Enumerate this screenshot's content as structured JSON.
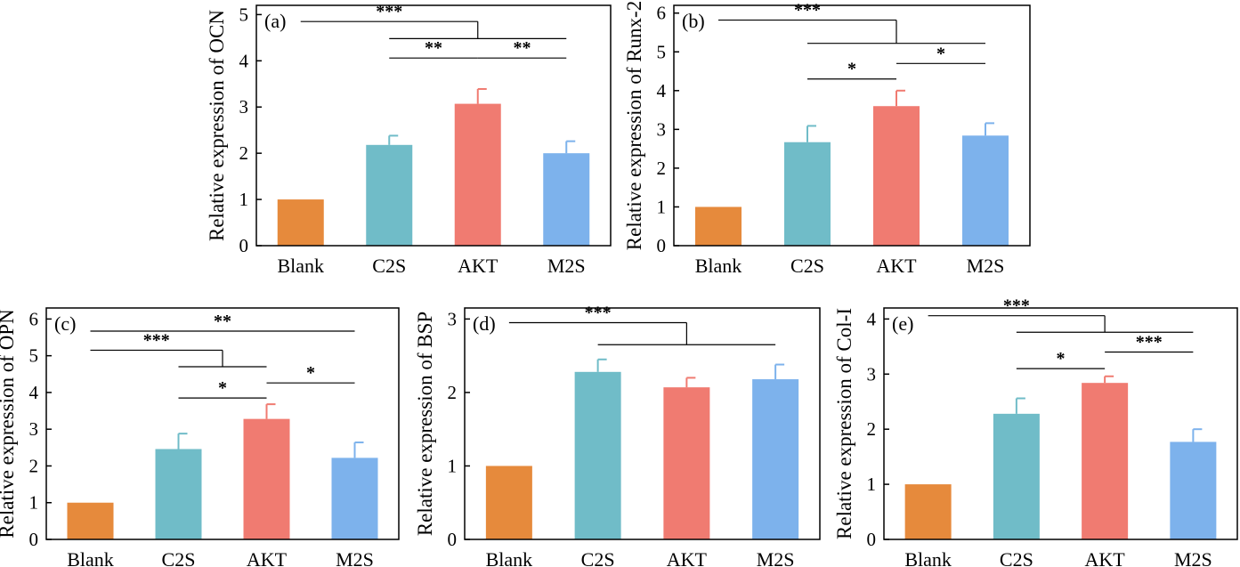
{
  "chart_data": [
    {
      "type": "bar",
      "panel_label": "(a)",
      "categories": [
        "Blank",
        "C2S",
        "AKT",
        "M2S"
      ],
      "values": [
        1.0,
        2.18,
        3.07,
        2.0
      ],
      "errors": [
        0.0,
        0.2,
        0.32,
        0.26
      ],
      "colors": [
        "#E68A3C",
        "#70BCC8",
        "#F07B71",
        "#7DB2EC"
      ],
      "ylabel": "Relative expression of OCN",
      "xlabel": "",
      "ylim": [
        0,
        5.2
      ],
      "yticks": [
        0,
        1,
        2,
        3,
        4,
        5
      ],
      "significance": [
        {
          "type": "group",
          "from": 0,
          "to_range": [
            1,
            3
          ],
          "label": "***",
          "y": 4.85,
          "y2": 4.48
        },
        {
          "type": "pair",
          "from": 1,
          "to": 2,
          "label": "**",
          "y": 4.06
        },
        {
          "type": "pair",
          "from": 2,
          "to": 3,
          "label": "**",
          "y": 4.06
        }
      ]
    },
    {
      "type": "bar",
      "panel_label": "(b)",
      "categories": [
        "Blank",
        "C2S",
        "AKT",
        "M2S"
      ],
      "values": [
        1.0,
        2.67,
        3.6,
        2.84
      ],
      "errors": [
        0.0,
        0.42,
        0.4,
        0.32
      ],
      "colors": [
        "#E68A3C",
        "#70BCC8",
        "#F07B71",
        "#7DB2EC"
      ],
      "ylabel": "Relative expression of Runx-2",
      "xlabel": "",
      "ylim": [
        0,
        6.2
      ],
      "yticks": [
        0,
        1,
        2,
        3,
        4,
        5,
        6
      ],
      "significance": [
        {
          "type": "group",
          "from": 0,
          "to_range": [
            1,
            3
          ],
          "label": "***",
          "y": 5.82,
          "y2": 5.22
        },
        {
          "type": "pair",
          "from": 1,
          "to": 2,
          "label": "*",
          "y": 4.3
        },
        {
          "type": "pair",
          "from": 2,
          "to": 3,
          "label": "*",
          "y": 4.7
        }
      ]
    },
    {
      "type": "bar",
      "panel_label": "(c)",
      "categories": [
        "Blank",
        "C2S",
        "AKT",
        "M2S"
      ],
      "values": [
        1.0,
        2.46,
        3.28,
        2.22
      ],
      "errors": [
        0.0,
        0.42,
        0.4,
        0.42
      ],
      "colors": [
        "#E68A3C",
        "#70BCC8",
        "#F07B71",
        "#7DB2EC"
      ],
      "ylabel": "Relative expression of OPN",
      "xlabel": "",
      "ylim": [
        0,
        6.3
      ],
      "yticks": [
        0,
        1,
        2,
        3,
        4,
        5,
        6
      ],
      "significance": [
        {
          "type": "pair",
          "from": 0,
          "to": 3,
          "label": "**",
          "y": 5.67
        },
        {
          "type": "group",
          "from": 0,
          "to_range": [
            1,
            2
          ],
          "label": "***",
          "y": 5.15,
          "y2": 4.7
        },
        {
          "type": "pair",
          "from": 1,
          "to": 2,
          "label": "*",
          "y": 3.85
        },
        {
          "type": "pair",
          "from": 2,
          "to": 3,
          "label": "*",
          "y": 4.26
        }
      ]
    },
    {
      "type": "bar",
      "panel_label": "(d)",
      "categories": [
        "Blank",
        "C2S",
        "AKT",
        "M2S"
      ],
      "values": [
        1.0,
        2.28,
        2.07,
        2.18
      ],
      "errors": [
        0.0,
        0.17,
        0.13,
        0.2
      ],
      "colors": [
        "#E68A3C",
        "#70BCC8",
        "#F07B71",
        "#7DB2EC"
      ],
      "ylabel": "Relative expression of BSP",
      "xlabel": "",
      "ylim": [
        0,
        3.15
      ],
      "yticks": [
        0,
        1,
        2,
        3
      ],
      "significance": [
        {
          "type": "group",
          "from": 0,
          "to_range": [
            1,
            3
          ],
          "label": "***",
          "y": 2.95,
          "y2": 2.65
        }
      ]
    },
    {
      "type": "bar",
      "panel_label": "(e)",
      "categories": [
        "Blank",
        "C2S",
        "AKT",
        "M2S"
      ],
      "values": [
        1.0,
        2.28,
        2.84,
        1.77
      ],
      "errors": [
        0.0,
        0.28,
        0.12,
        0.23
      ],
      "colors": [
        "#E68A3C",
        "#70BCC8",
        "#F07B71",
        "#7DB2EC"
      ],
      "ylabel": "Relative expression of Col-I",
      "xlabel": "",
      "ylim": [
        0,
        4.2
      ],
      "yticks": [
        0,
        1,
        2,
        3,
        4
      ],
      "significance": [
        {
          "type": "group",
          "from": 0,
          "to_range": [
            1,
            3
          ],
          "label": "***",
          "y": 4.06,
          "y2": 3.76
        },
        {
          "type": "pair",
          "from": 1,
          "to": 2,
          "label": "*",
          "y": 3.1
        },
        {
          "type": "pair",
          "from": 2,
          "to": 3,
          "label": "***",
          "y": 3.4
        }
      ]
    }
  ]
}
